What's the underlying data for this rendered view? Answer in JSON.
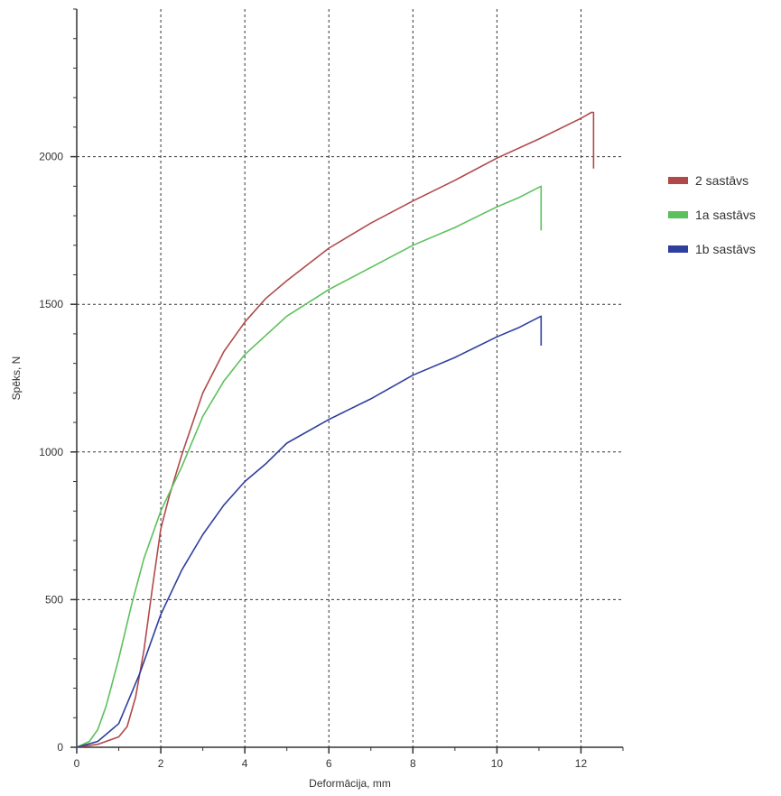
{
  "chart_data": {
    "type": "line",
    "title": "",
    "xlabel": "Deformācija, mm",
    "ylabel": "Spēks, N",
    "xlim": [
      0,
      13
    ],
    "ylim": [
      0,
      2500
    ],
    "x_ticks": [
      0,
      2,
      4,
      6,
      8,
      10,
      12
    ],
    "y_ticks": [
      0,
      500,
      1000,
      1500,
      2000
    ],
    "grid": true,
    "grid_style": "dashed",
    "legend_position": "right",
    "series": [
      {
        "name": "2 sastāvs",
        "color": "#b04a4a",
        "points": [
          [
            0,
            0
          ],
          [
            0.5,
            10
          ],
          [
            1,
            35
          ],
          [
            1.2,
            70
          ],
          [
            1.4,
            170
          ],
          [
            1.6,
            330
          ],
          [
            1.8,
            540
          ],
          [
            2,
            740
          ],
          [
            2.2,
            850
          ],
          [
            2.5,
            990
          ],
          [
            3,
            1200
          ],
          [
            3.5,
            1340
          ],
          [
            4,
            1440
          ],
          [
            4.5,
            1520
          ],
          [
            5,
            1580
          ],
          [
            6,
            1690
          ],
          [
            7,
            1775
          ],
          [
            8,
            1850
          ],
          [
            9,
            1920
          ],
          [
            10,
            1995
          ],
          [
            11,
            2060
          ],
          [
            12,
            2130
          ],
          [
            12.25,
            2150
          ],
          [
            12.3,
            2150
          ],
          [
            12.3,
            1960
          ]
        ]
      },
      {
        "name": "1a sastāvs",
        "color": "#5cc15c",
        "points": [
          [
            0,
            0
          ],
          [
            0.3,
            20
          ],
          [
            0.5,
            60
          ],
          [
            0.7,
            140
          ],
          [
            1,
            300
          ],
          [
            1.3,
            480
          ],
          [
            1.6,
            640
          ],
          [
            2,
            800
          ],
          [
            2.5,
            950
          ],
          [
            3,
            1120
          ],
          [
            3.5,
            1240
          ],
          [
            4,
            1330
          ],
          [
            5,
            1460
          ],
          [
            6,
            1550
          ],
          [
            7,
            1625
          ],
          [
            8,
            1700
          ],
          [
            9,
            1760
          ],
          [
            10,
            1830
          ],
          [
            10.5,
            1860
          ],
          [
            11.05,
            1900
          ],
          [
            11.05,
            1750
          ]
        ]
      },
      {
        "name": "1b sastāvs",
        "color": "#2e3f9e",
        "points": [
          [
            0,
            0
          ],
          [
            0.5,
            20
          ],
          [
            1,
            80
          ],
          [
            1.5,
            250
          ],
          [
            2,
            450
          ],
          [
            2.5,
            600
          ],
          [
            3,
            720
          ],
          [
            3.5,
            820
          ],
          [
            4,
            900
          ],
          [
            4.5,
            960
          ],
          [
            5,
            1030
          ],
          [
            6,
            1110
          ],
          [
            7,
            1180
          ],
          [
            8,
            1260
          ],
          [
            9,
            1320
          ],
          [
            10,
            1390
          ],
          [
            10.5,
            1420
          ],
          [
            11.05,
            1460
          ],
          [
            11.05,
            1360
          ]
        ]
      }
    ]
  }
}
